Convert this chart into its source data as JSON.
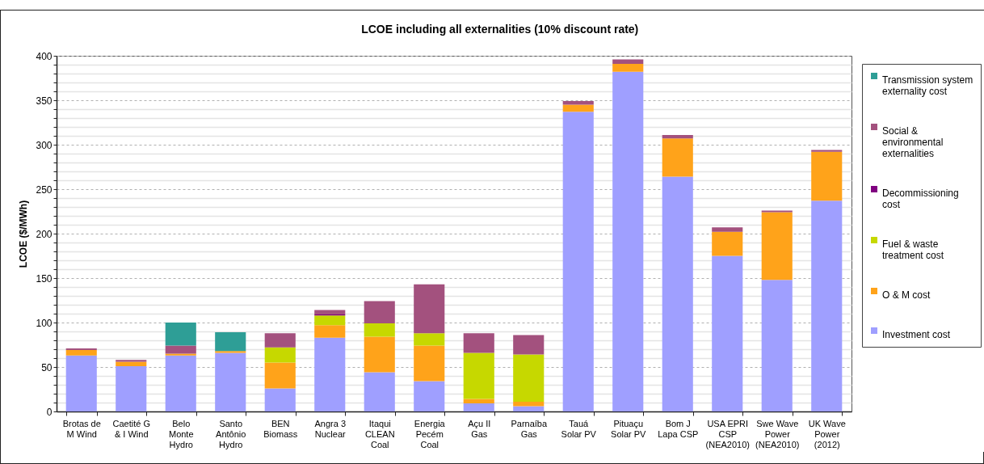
{
  "chart_data": {
    "type": "bar",
    "title": "LCOE including all externalities (10% discount rate)",
    "ylabel": "LCOE ($/MWh)",
    "categories": [
      "Brotas de M Wind",
      "Caetité G & I Wind",
      "Belo Monte Hydro",
      "Santo Antônio Hydro",
      "BEN Biomass",
      "Angra 3 Nuclear",
      "Itaqui CLEAN Coal",
      "Energia Pecém Coal",
      "Açu II Gas",
      "Parnaíba Gas",
      "Tauá Solar PV",
      "Pituaçu Solar PV",
      "Bom J Lapa CSP",
      "USA EPRI CSP (NEA2010)",
      "Swe Wave Power (NEA2010)",
      "UK Wave Power (2012)"
    ],
    "series": [
      {
        "name": "Investment cost",
        "color": "#9f9fff",
        "values": [
          63,
          51,
          63,
          66,
          26,
          83,
          44,
          34,
          9,
          6,
          337,
          382,
          264,
          175,
          148,
          237
        ]
      },
      {
        "name": "O & M cost",
        "color": "#ffa31a",
        "values": [
          6,
          5,
          2,
          2,
          29,
          14,
          40,
          40,
          5,
          5,
          8,
          9,
          43,
          27,
          76,
          55
        ]
      },
      {
        "name": "Fuel & waste treatment cost",
        "color": "#c6d800",
        "values": [
          null,
          null,
          null,
          null,
          17,
          11,
          15,
          14,
          52,
          53,
          null,
          null,
          null,
          null,
          null,
          null
        ]
      },
      {
        "name": "Decommissioning cost",
        "color": "#800080",
        "values": [
          null,
          null,
          null,
          null,
          null,
          1,
          null,
          null,
          null,
          null,
          null,
          null,
          null,
          null,
          null,
          null
        ]
      },
      {
        "name": "Social & environmental externalities",
        "color": "#a3517e",
        "values": [
          2,
          2,
          9,
          null,
          16,
          5,
          25,
          55,
          22,
          22,
          4,
          5,
          4,
          5,
          2,
          2
        ]
      },
      {
        "name": "Transmission system externality cost",
        "color": "#2e9e96",
        "values": [
          null,
          null,
          26,
          21,
          null,
          null,
          null,
          null,
          null,
          null,
          null,
          null,
          null,
          null,
          null,
          null
        ]
      }
    ],
    "stacked": true,
    "ylim": [
      0,
      400
    ],
    "yticks": [
      0,
      {
        "value": 10,
        "label": null
      },
      {
        "value": 20,
        "label": null
      },
      {
        "value": 30,
        "label": null
      },
      {
        "value": 40,
        "label": null
      },
      50,
      {
        "value": 60,
        "label": null
      },
      {
        "value": 70,
        "label": null
      },
      {
        "value": 80,
        "label": null
      },
      {
        "value": 90,
        "label": null
      },
      100,
      {
        "value": 110,
        "label": null
      },
      {
        "value": 120,
        "label": null
      },
      {
        "value": 130,
        "label": null
      },
      {
        "value": 140,
        "label": null
      },
      150,
      {
        "value": 160,
        "label": null
      },
      {
        "value": 170,
        "label": null
      },
      {
        "value": 180,
        "label": null
      },
      {
        "value": 190,
        "label": null
      },
      200,
      {
        "value": 210,
        "label": null
      },
      {
        "value": 220,
        "label": null
      },
      {
        "value": 230,
        "label": null
      },
      {
        "value": 240,
        "label": null
      },
      250,
      {
        "value": 260,
        "label": null
      },
      {
        "value": 270,
        "label": null
      },
      {
        "value": 280,
        "label": null
      },
      {
        "value": 290,
        "label": null
      },
      300,
      {
        "value": 310,
        "label": null
      },
      {
        "value": 320,
        "label": null
      },
      {
        "value": 330,
        "label": null
      },
      {
        "value": 340,
        "label": null
      },
      350,
      {
        "value": 360,
        "label": null
      },
      {
        "value": 370,
        "label": null
      },
      {
        "value": 380,
        "label": null
      },
      {
        "value": 390,
        "label": null
      },
      400
    ],
    "grid": "y",
    "legend": "right"
  }
}
